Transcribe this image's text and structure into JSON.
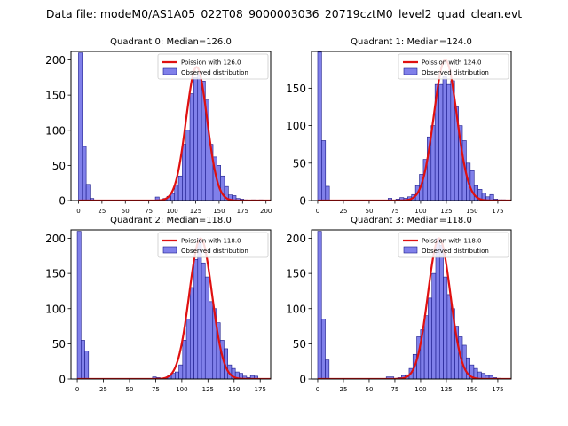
{
  "suptitle": "Data file: modeM0/AS1A05_022T08_9000003036_20719cztM0_level2_quad_clean.evt",
  "colors": {
    "bar_fill": "#6a6ae6",
    "bar_edge": "#1c1c8a",
    "curve": "#e01010",
    "axis": "#000000"
  },
  "chart_data": [
    {
      "type": "bar",
      "title": "Quadrant 0: Median=126.0",
      "xlim": [
        -8,
        205
      ],
      "ylim": [
        0,
        212
      ],
      "xticks": [
        0,
        25,
        50,
        75,
        100,
        125,
        150,
        175,
        200
      ],
      "yticks": [
        0,
        50,
        100,
        150,
        200
      ],
      "bin_width": 4.1,
      "bin_starts": [
        0,
        4.1,
        8.2,
        12.3,
        16.4,
        20.5,
        24.6,
        28.7,
        32.8,
        36.9,
        41,
        45.1,
        49.2,
        53.3,
        57.4,
        61.5,
        65.6,
        69.7,
        73.8,
        77.9,
        82,
        86.1,
        90.2,
        94.3,
        98.4,
        102.5,
        106.6,
        110.7,
        114.8,
        118.9,
        123,
        127.1,
        131.2,
        135.3,
        139.4,
        143.5,
        147.6,
        151.7,
        155.8,
        159.9,
        164,
        168.1,
        172.2,
        176.3,
        180.4,
        184.5,
        188.6,
        192.7
      ],
      "counts": [
        210,
        77,
        23,
        3,
        0,
        0,
        0,
        0,
        0,
        0,
        0,
        0,
        0,
        0,
        0,
        0,
        0,
        0,
        0,
        0,
        5,
        0,
        3,
        6,
        10,
        22,
        35,
        80,
        100,
        152,
        175,
        178,
        170,
        143,
        80,
        62,
        50,
        35,
        20,
        8,
        7,
        3,
        2,
        1,
        0,
        1,
        0,
        1
      ],
      "poisson_mean": 126.0,
      "poisson_peak": 190,
      "legend": {
        "curve": "Poission with 126.0",
        "bars": "Observed distribution",
        "location": "upper right"
      }
    },
    {
      "type": "bar",
      "title": "Quadrant 1: Median=124.0",
      "xlim": [
        -6,
        188
      ],
      "ylim": [
        0,
        199
      ],
      "xticks": [
        0,
        25,
        50,
        75,
        100,
        125,
        150,
        175
      ],
      "yticks": [
        0,
        50,
        100,
        150
      ],
      "bin_width": 3.8,
      "bin_starts": [
        0,
        3.8,
        7.6,
        11.4,
        15.2,
        19,
        22.8,
        26.6,
        30.4,
        34.2,
        38,
        41.8,
        45.6,
        49.4,
        53.2,
        57,
        60.8,
        64.6,
        68.4,
        72.2,
        76,
        79.8,
        83.6,
        87.4,
        91.2,
        95,
        98.8,
        102.6,
        106.4,
        110.2,
        114,
        117.8,
        121.6,
        125.4,
        129.2,
        133,
        136.8,
        140.6,
        144.4,
        148.2,
        152,
        155.8,
        159.6,
        163.4,
        167.2,
        171,
        174.8,
        178.6
      ],
      "counts": [
        198,
        80,
        19,
        0,
        0,
        0,
        0,
        0,
        0,
        0,
        0,
        0,
        0,
        0,
        0,
        0,
        0,
        0,
        3,
        0,
        2,
        4,
        3,
        5,
        8,
        20,
        35,
        55,
        85,
        100,
        155,
        155,
        165,
        155,
        160,
        125,
        100,
        80,
        50,
        40,
        20,
        15,
        10,
        5,
        8,
        2,
        1,
        1
      ],
      "poisson_mean": 124.0,
      "poisson_peak": 188,
      "legend": {
        "curve": "Poission with 124.0",
        "bars": "Observed distribution",
        "location": "upper right"
      }
    },
    {
      "type": "bar",
      "title": "Quadrant 2: Median=118.0",
      "xlim": [
        -6,
        185
      ],
      "ylim": [
        0,
        212
      ],
      "xticks": [
        0,
        25,
        50,
        75,
        100,
        125,
        150,
        175
      ],
      "yticks": [
        0,
        50,
        100,
        150,
        200
      ],
      "bin_width": 3.6,
      "bin_starts": [
        0,
        3.6,
        7.2,
        10.8,
        14.4,
        18,
        21.6,
        25.2,
        28.8,
        32.4,
        36,
        39.6,
        43.2,
        46.8,
        50.4,
        54,
        57.6,
        61.2,
        64.8,
        68.4,
        72,
        75.6,
        79.2,
        82.8,
        86.4,
        90,
        93.6,
        97.2,
        100.8,
        104.4,
        108,
        111.6,
        115.2,
        118.8,
        122.4,
        126,
        129.6,
        133.2,
        136.8,
        140.4,
        144,
        147.6,
        151.2,
        154.8,
        158.4,
        162,
        165.6,
        169.2
      ],
      "counts": [
        210,
        55,
        40,
        0,
        0,
        0,
        0,
        0,
        0,
        0,
        0,
        0,
        0,
        0,
        0,
        0,
        0,
        0,
        0,
        0,
        3,
        2,
        1,
        2,
        5,
        8,
        10,
        20,
        55,
        85,
        130,
        170,
        200,
        165,
        145,
        110,
        100,
        80,
        55,
        43,
        20,
        15,
        10,
        8,
        4,
        2,
        5,
        4
      ],
      "poisson_mean": 118.0,
      "poisson_peak": 200,
      "legend": {
        "curve": "Poission with 118.0",
        "bars": "Observed distribution",
        "location": "upper right"
      }
    },
    {
      "type": "bar",
      "title": "Quadrant 3: Median=118.0",
      "xlim": [
        -6,
        188
      ],
      "ylim": [
        0,
        212
      ],
      "xticks": [
        0,
        25,
        50,
        75,
        100,
        125,
        150,
        175
      ],
      "yticks": [
        0,
        50,
        100,
        150,
        200
      ],
      "bin_width": 3.7,
      "bin_starts": [
        0,
        3.7,
        7.4,
        11.1,
        14.8,
        18.5,
        22.2,
        25.9,
        29.6,
        33.3,
        37,
        40.7,
        44.4,
        48.1,
        51.8,
        55.5,
        59.2,
        62.9,
        66.6,
        70.3,
        74,
        77.7,
        81.4,
        85.1,
        88.8,
        92.5,
        96.2,
        99.9,
        103.6,
        107.3,
        111,
        114.7,
        118.4,
        122.1,
        125.8,
        129.5,
        133.2,
        136.9,
        140.6,
        144.3,
        148,
        151.7,
        155.4,
        159.1,
        162.8,
        166.5,
        170.2,
        173.9
      ],
      "counts": [
        210,
        85,
        27,
        0,
        0,
        0,
        0,
        0,
        0,
        0,
        0,
        0,
        0,
        0,
        0,
        0,
        0,
        0,
        3,
        3,
        0,
        2,
        5,
        6,
        15,
        35,
        60,
        70,
        90,
        115,
        150,
        200,
        190,
        145,
        120,
        100,
        75,
        60,
        48,
        30,
        20,
        15,
        10,
        8,
        5,
        5,
        2,
        1
      ],
      "poisson_mean": 118.0,
      "poisson_peak": 200,
      "legend": {
        "curve": "Poission with 118.0",
        "bars": "Observed distribution",
        "location": "upper right"
      }
    }
  ]
}
